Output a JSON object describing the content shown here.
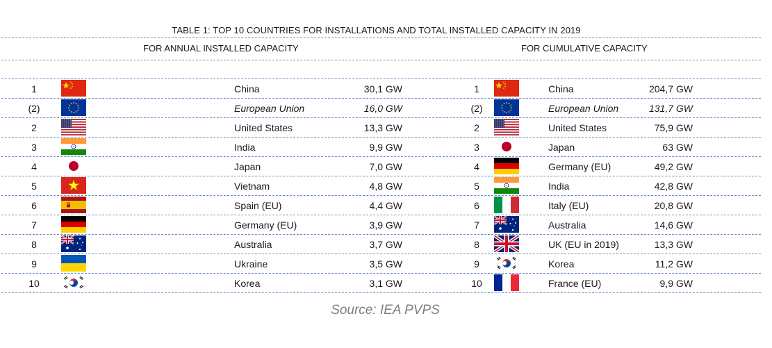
{
  "title": "TABLE 1: TOP 10 COUNTRIES FOR INSTALLATIONS AND TOTAL INSTALLED CAPACITY IN 2019",
  "annual_header": "FOR ANNUAL INSTALLED CAPACITY",
  "cumulative_header": "FOR CUMULATIVE CAPACITY",
  "annual": [
    {
      "rank": "1",
      "flag": "china-flag-icon",
      "country": "China",
      "value": "30,1 GW"
    },
    {
      "rank": "(2)",
      "flag": "eu-flag-icon",
      "country": "European Union",
      "value": "16,0 GW",
      "italic": true
    },
    {
      "rank": "2",
      "flag": "usa-flag-icon",
      "country": "United States",
      "value": "13,3 GW"
    },
    {
      "rank": "3",
      "flag": "india-flag-icon",
      "country": "India",
      "value": "9,9 GW"
    },
    {
      "rank": "4",
      "flag": "japan-flag-icon",
      "country": "Japan",
      "value": "7,0 GW"
    },
    {
      "rank": "5",
      "flag": "vietnam-flag-icon",
      "country": "Vietnam",
      "value": "4,8 GW"
    },
    {
      "rank": "6",
      "flag": "spain-flag-icon",
      "country": "Spain (EU)",
      "value": "4,4 GW"
    },
    {
      "rank": "7",
      "flag": "germany-flag-icon",
      "country": "Germany (EU)",
      "value": "3,9 GW"
    },
    {
      "rank": "8",
      "flag": "australia-flag-icon",
      "country": "Australia",
      "value": "3,7 GW"
    },
    {
      "rank": "9",
      "flag": "ukraine-flag-icon",
      "country": "Ukraine",
      "value": "3,5 GW"
    },
    {
      "rank": "10",
      "flag": "korea-flag-icon",
      "country": "Korea",
      "value": "3,1 GW"
    }
  ],
  "cumulative": [
    {
      "rank": "1",
      "flag": "china-flag-icon",
      "country": "China",
      "value": "204,7 GW"
    },
    {
      "rank": "(2)",
      "flag": "eu-flag-icon",
      "country": "European Union",
      "value": "131,7 GW",
      "italic": true
    },
    {
      "rank": "2",
      "flag": "usa-flag-icon",
      "country": "United States",
      "value": "75,9 GW"
    },
    {
      "rank": "3",
      "flag": "japan-flag-icon",
      "country": "Japan",
      "value": "63 GW"
    },
    {
      "rank": "4",
      "flag": "germany-flag-icon",
      "country": "Germany (EU)",
      "value": "49,2 GW"
    },
    {
      "rank": "5",
      "flag": "india-flag-icon",
      "country": "India",
      "value": "42,8 GW"
    },
    {
      "rank": "6",
      "flag": "italy-flag-icon",
      "country": "Italy (EU)",
      "value": "20,8 GW"
    },
    {
      "rank": "7",
      "flag": "australia-flag-icon",
      "country": "Australia",
      "value": "14,6 GW"
    },
    {
      "rank": "8",
      "flag": "uk-flag-icon",
      "country": "UK (EU in 2019)",
      "value": "13,3 GW"
    },
    {
      "rank": "9",
      "flag": "korea-flag-icon",
      "country": "Korea",
      "value": "11,2 GW"
    },
    {
      "rank": "10",
      "flag": "france-flag-icon",
      "country": "France (EU)",
      "value": "9,9 GW"
    }
  ],
  "source": "Source: IEA PVPS"
}
